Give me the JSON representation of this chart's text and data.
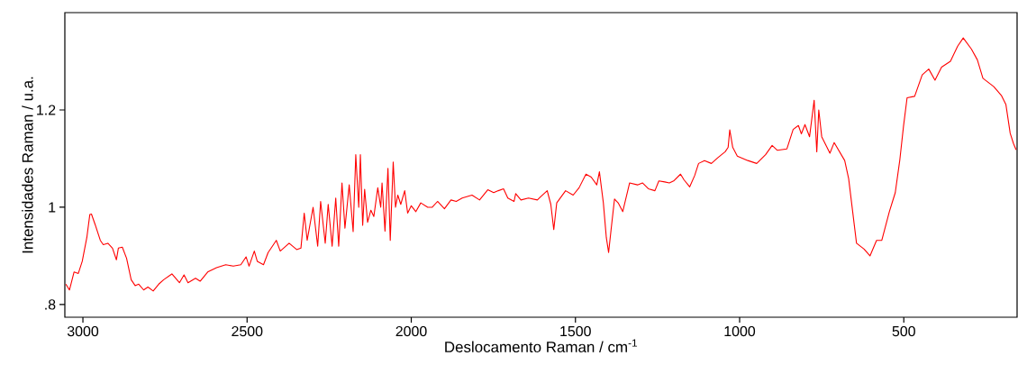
{
  "chart_data": {
    "type": "line",
    "xlabel": "Deslocamento Raman / cm$^{-1}$",
    "ylabel": "Intensidades Raman / u.a.",
    "xlim": [
      3055,
      155
    ],
    "ylim": [
      0.774,
      1.4
    ],
    "xticks": [
      3000,
      2500,
      2000,
      1500,
      1000,
      500
    ],
    "yticks": [
      {
        "value": 0.8,
        "label": ".8"
      },
      1,
      1.2
    ],
    "grid": false,
    "marker": "none",
    "line_style": "solid",
    "series": [
      {
        "color": "#ff0000",
        "x": [
          3052,
          3041,
          3027,
          3014,
          3002,
          2988,
          2979,
          2974,
          2962,
          2947,
          2938,
          2924,
          2910,
          2898,
          2892,
          2880,
          2867,
          2853,
          2841,
          2830,
          2815,
          2802,
          2786,
          2769,
          2754,
          2729,
          2706,
          2692,
          2680,
          2657,
          2643,
          2620,
          2593,
          2565,
          2542,
          2519,
          2503,
          2494,
          2478,
          2469,
          2450,
          2436,
          2411,
          2399,
          2372,
          2349,
          2336,
          2326,
          2317,
          2299,
          2285,
          2276,
          2262,
          2253,
          2241,
          2230,
          2221,
          2211,
          2202,
          2189,
          2177,
          2169,
          2160,
          2155,
          2148,
          2142,
          2133,
          2123,
          2114,
          2102,
          2093,
          2089,
          2080,
          2071,
          2064,
          2055,
          2048,
          2041,
          2032,
          2020,
          2011,
          2000,
          1986,
          1971,
          1950,
          1936,
          1920,
          1899,
          1879,
          1863,
          1845,
          1815,
          1792,
          1767,
          1749,
          1735,
          1719,
          1706,
          1687,
          1682,
          1666,
          1643,
          1616,
          1607,
          1586,
          1575,
          1566,
          1557,
          1530,
          1507,
          1489,
          1468,
          1452,
          1435,
          1427,
          1415,
          1406,
          1399,
          1390,
          1381,
          1370,
          1356,
          1335,
          1311,
          1296,
          1278,
          1258,
          1246,
          1228,
          1214,
          1201,
          1180,
          1169,
          1152,
          1137,
          1125,
          1107,
          1086,
          1066,
          1044,
          1035,
          1030,
          1021,
          1007,
          975,
          948,
          921,
          901,
          885,
          856,
          837,
          821,
          812,
          801,
          787,
          773,
          765,
          759,
          750,
          725,
          712,
          680,
          668,
          644,
          621,
          603,
          583,
          567,
          544,
          526,
          512,
          501,
          490,
          467,
          444,
          424,
          405,
          385,
          358,
          336,
          319,
          294,
          276,
          259,
          226,
          203,
          189,
          176,
          166,
          158
        ],
        "values": [
          0.842,
          0.83,
          0.867,
          0.864,
          0.889,
          0.938,
          0.985,
          0.986,
          0.963,
          0.932,
          0.923,
          0.926,
          0.916,
          0.892,
          0.916,
          0.918,
          0.895,
          0.851,
          0.839,
          0.842,
          0.83,
          0.836,
          0.828,
          0.842,
          0.851,
          0.863,
          0.845,
          0.861,
          0.845,
          0.854,
          0.848,
          0.867,
          0.876,
          0.882,
          0.879,
          0.882,
          0.898,
          0.879,
          0.91,
          0.889,
          0.882,
          0.907,
          0.932,
          0.91,
          0.926,
          0.913,
          0.916,
          0.988,
          0.932,
          1.0,
          0.92,
          1.012,
          0.926,
          1.006,
          0.92,
          1.019,
          0.92,
          1.05,
          0.957,
          1.046,
          0.95,
          1.108,
          1.0,
          1.108,
          0.963,
          1.037,
          0.969,
          0.994,
          0.981,
          1.04,
          1.0,
          1.05,
          0.951,
          1.08,
          0.932,
          1.093,
          1.0,
          1.025,
          1.006,
          1.034,
          0.988,
          1.003,
          0.991,
          1.009,
          1.0,
          1.0,
          1.012,
          0.997,
          1.015,
          1.012,
          1.019,
          1.025,
          1.015,
          1.036,
          1.03,
          1.034,
          1.038,
          1.019,
          1.012,
          1.028,
          1.015,
          1.019,
          1.015,
          1.021,
          1.034,
          1.006,
          0.954,
          1.009,
          1.034,
          1.025,
          1.04,
          1.068,
          1.062,
          1.046,
          1.073,
          1.009,
          0.938,
          0.907,
          0.963,
          1.017,
          1.009,
          0.991,
          1.05,
          1.046,
          1.05,
          1.038,
          1.034,
          1.054,
          1.052,
          1.05,
          1.054,
          1.068,
          1.056,
          1.042,
          1.065,
          1.09,
          1.096,
          1.09,
          1.102,
          1.114,
          1.123,
          1.159,
          1.123,
          1.105,
          1.096,
          1.09,
          1.108,
          1.127,
          1.117,
          1.12,
          1.16,
          1.168,
          1.151,
          1.17,
          1.145,
          1.22,
          1.114,
          1.2,
          1.145,
          1.111,
          1.133,
          1.096,
          1.059,
          0.926,
          0.914,
          0.9,
          0.932,
          0.932,
          0.991,
          1.03,
          1.098,
          1.166,
          1.225,
          1.228,
          1.272,
          1.284,
          1.261,
          1.288,
          1.3,
          1.331,
          1.348,
          1.325,
          1.303,
          1.265,
          1.248,
          1.23,
          1.211,
          1.152,
          1.131,
          1.118
        ]
      }
    ]
  }
}
